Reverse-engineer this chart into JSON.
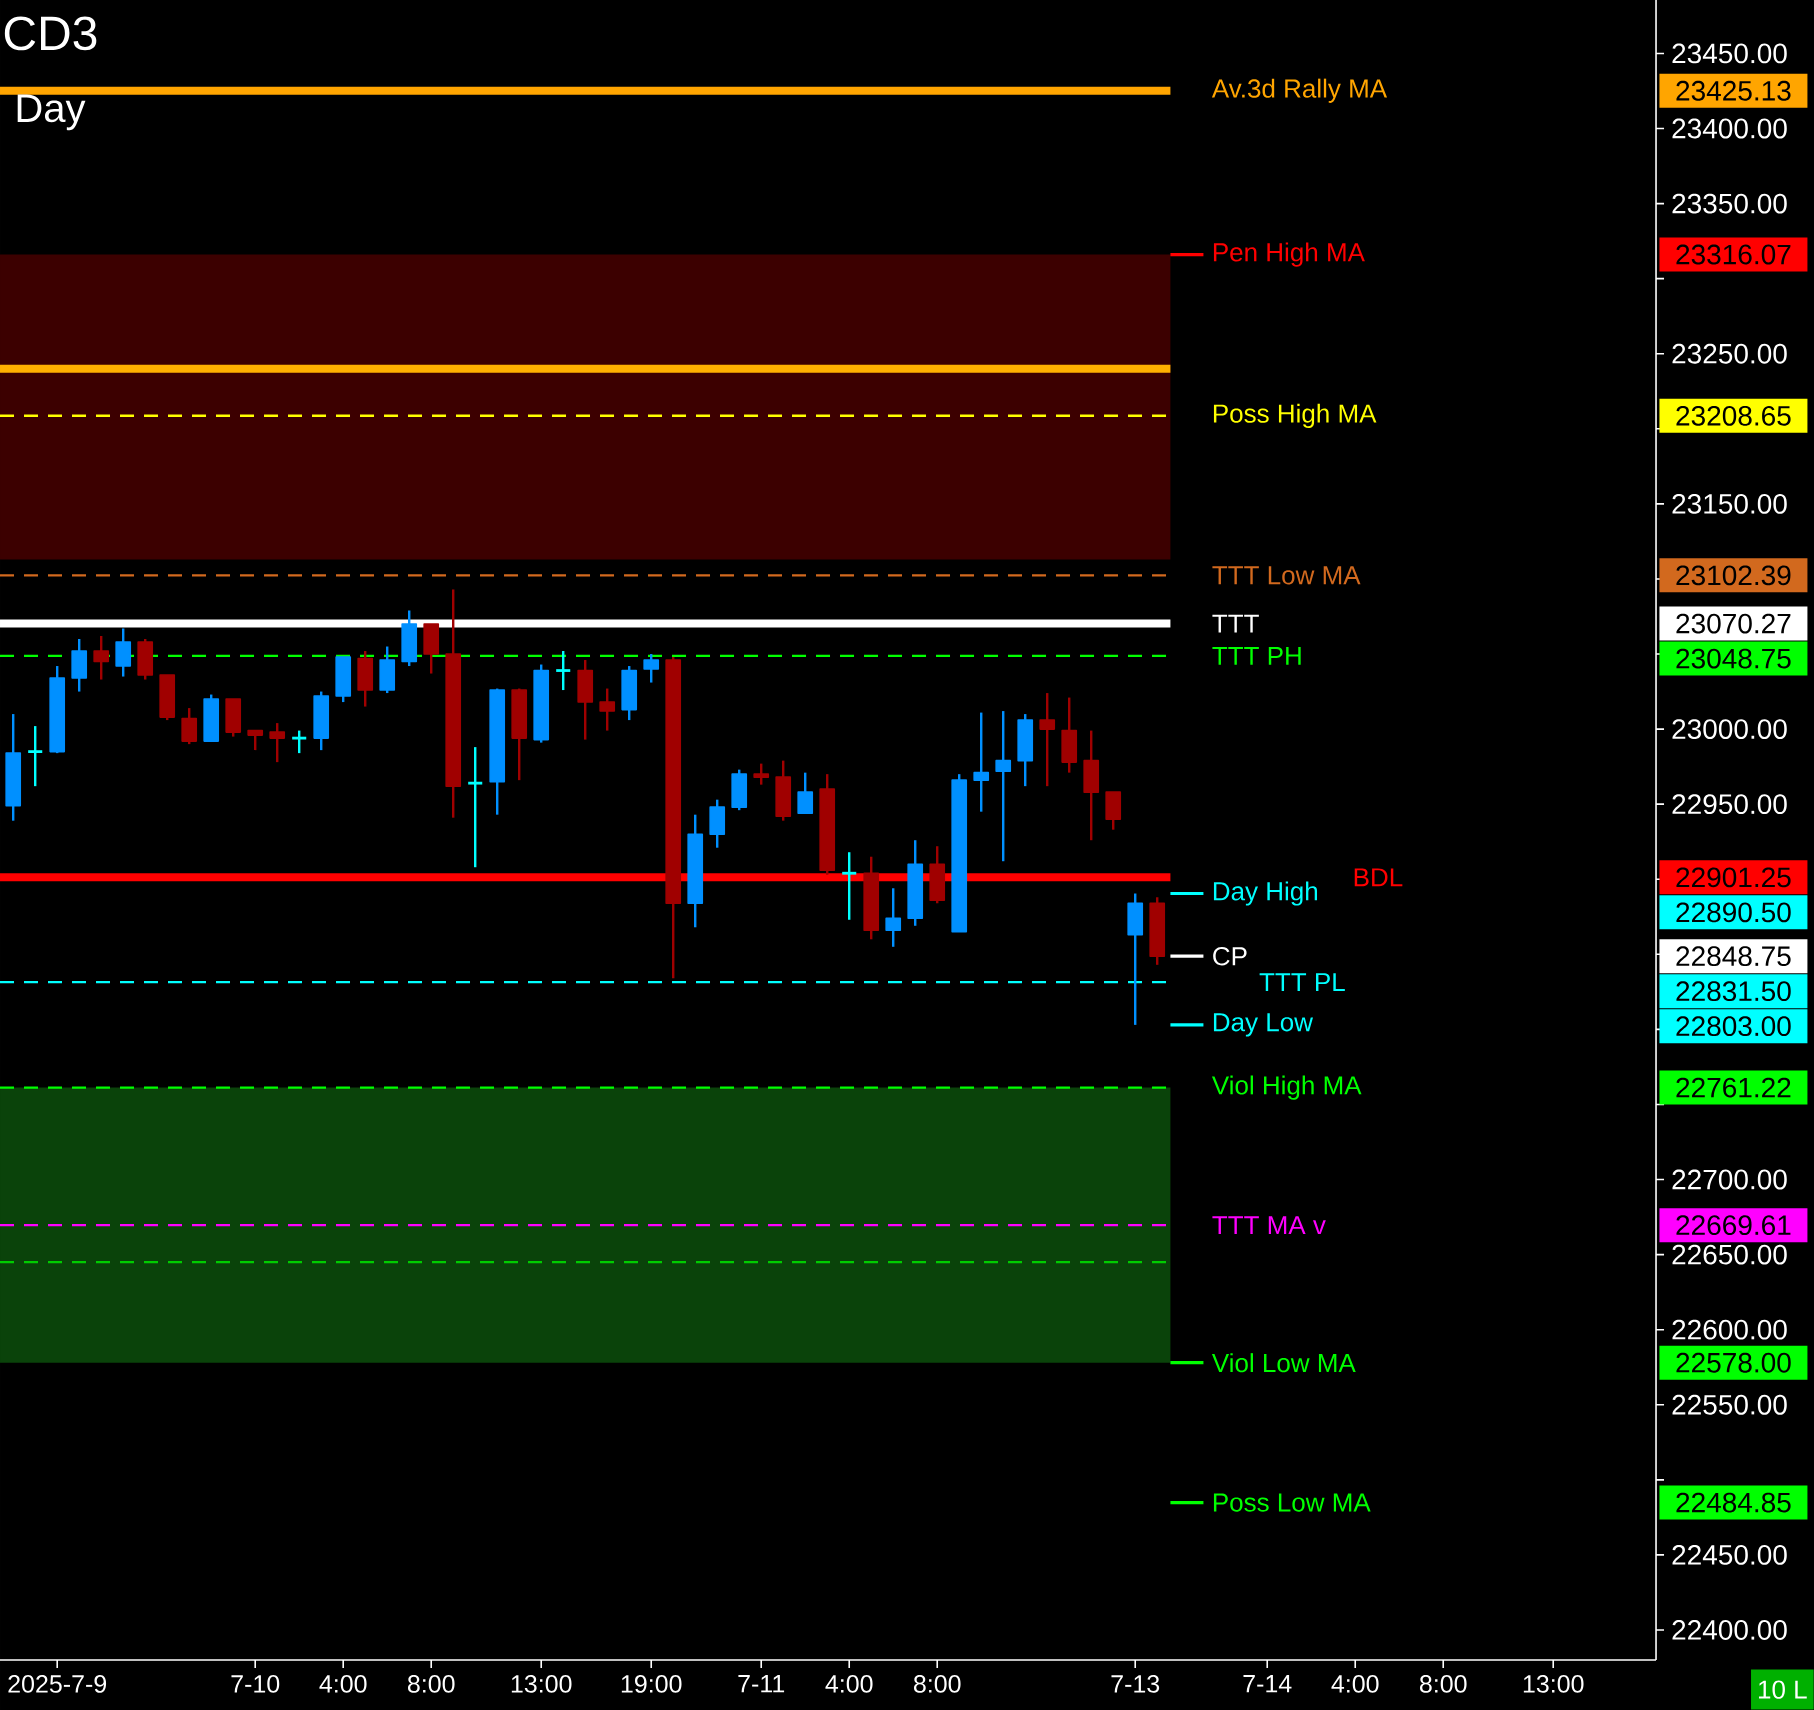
{
  "chart_data": {
    "type": "candlestick",
    "title": "CD3",
    "subtitle": "Day",
    "categories": [
      null,
      null,
      "2025-7-9",
      null,
      null,
      null,
      null,
      null,
      null,
      null,
      null,
      "7-10",
      null,
      null,
      null,
      "4:00",
      null,
      null,
      null,
      "8:00",
      null,
      null,
      null,
      null,
      "13:00",
      null,
      null,
      null,
      null,
      "19:00",
      null,
      null,
      null,
      null,
      "7-11",
      null,
      null,
      null,
      "4:00",
      null,
      null,
      null,
      "8:00",
      null,
      null,
      null,
      null,
      null,
      null,
      null,
      null,
      "7-13",
      null,
      null,
      null,
      null,
      null,
      "7-14",
      null,
      null,
      null,
      "4:00",
      null,
      null,
      null,
      "8:00",
      null,
      null,
      null,
      null,
      "13:00",
      null,
      null,
      null,
      null
    ],
    "ohlc": [
      [
        22949,
        23010,
        22939,
        22984
      ],
      [
        22985,
        23002,
        22962,
        22985
      ],
      [
        22985,
        23042,
        22984,
        23034
      ],
      [
        23034,
        23060,
        23025,
        23052
      ],
      [
        23052,
        23062,
        23033,
        23045
      ],
      [
        23042,
        23067,
        23035,
        23058
      ],
      [
        23058,
        23060,
        23033,
        23036
      ],
      [
        23036,
        23036,
        23006,
        23008
      ],
      [
        23007,
        23014,
        22990,
        22992
      ],
      [
        22992,
        23023,
        22992,
        23020
      ],
      [
        23020,
        23020,
        22995,
        22998
      ],
      [
        22999,
        22999,
        22986,
        22996
      ],
      [
        22998,
        23004,
        22978,
        22994
      ],
      [
        22994,
        22999,
        22984,
        22994
      ],
      [
        22994,
        23025,
        22986,
        23022
      ],
      [
        23022,
        23048,
        23018,
        23048
      ],
      [
        23047,
        23052,
        23015,
        23026
      ],
      [
        23026,
        23055,
        23024,
        23046
      ],
      [
        23045,
        23079,
        23042,
        23070
      ],
      [
        23070,
        23070,
        23037,
        23050
      ],
      [
        23050,
        23093,
        22941,
        22962
      ],
      [
        22964,
        22988,
        22908,
        22964
      ],
      [
        22965,
        23027,
        22943,
        23026
      ],
      [
        23026,
        23027,
        22966,
        22994
      ],
      [
        22993,
        23043,
        22991,
        23039
      ],
      [
        23039,
        23052,
        23026,
        23039
      ],
      [
        23039,
        23046,
        22993,
        23018
      ],
      [
        23018,
        23027,
        22999,
        23012
      ],
      [
        23013,
        23042,
        23006,
        23039
      ],
      [
        23040,
        23050,
        23031,
        23046
      ],
      [
        23046,
        23048,
        22834,
        22884
      ],
      [
        22884,
        22943,
        22868,
        22930
      ],
      [
        22930,
        22953,
        22921,
        22948
      ],
      [
        22948,
        22973,
        22946,
        22970
      ],
      [
        22970,
        22977,
        22963,
        22968
      ],
      [
        22968,
        22979,
        22939,
        22942
      ],
      [
        22944,
        22971,
        22944,
        22958
      ],
      [
        22960,
        22970,
        22903,
        22906
      ],
      [
        22904,
        22918,
        22873,
        22904
      ],
      [
        22904,
        22915,
        22860,
        22866
      ],
      [
        22866,
        22894,
        22855,
        22874
      ],
      [
        22874,
        22926,
        22869,
        22910
      ],
      [
        22910,
        22922,
        22884,
        22886
      ],
      [
        22865,
        22970,
        22865,
        22966
      ],
      [
        22966,
        23011,
        22945,
        22971
      ],
      [
        22972,
        23012,
        22912,
        22979
      ],
      [
        22979,
        23010,
        22962,
        23006
      ],
      [
        23006,
        23024,
        22962,
        23000
      ],
      [
        22999,
        23021,
        22971,
        22978
      ],
      [
        22979,
        22999,
        22926,
        22958
      ],
      [
        22958,
        22958,
        22933,
        22940
      ],
      [
        22863,
        22890.5,
        22803,
        22884
      ],
      [
        22884,
        22888,
        22843,
        22848.75
      ],
      null,
      null,
      null,
      null,
      null,
      null,
      null,
      null,
      null,
      null,
      null,
      null,
      null,
      null,
      null,
      null,
      null,
      null,
      null,
      null,
      null,
      null
    ],
    "colors": [
      "#0090ff",
      "#00ffff",
      "#0090ff",
      "#0090ff",
      "#a00000",
      "#0090ff",
      "#a00000",
      "#a00000",
      "#a00000",
      "#0090ff",
      "#a00000",
      "#a00000",
      "#a00000",
      "#00ffff",
      "#0090ff",
      "#0090ff",
      "#a00000",
      "#0090ff",
      "#0090ff",
      "#a00000",
      "#a00000",
      "#00ffff",
      "#0090ff",
      "#a00000",
      "#0090ff",
      "#00ffff",
      "#a00000",
      "#a00000",
      "#0090ff",
      "#0090ff",
      "#a00000",
      "#0090ff",
      "#0090ff",
      "#0090ff",
      "#a00000",
      "#a00000",
      "#0090ff",
      "#a00000",
      "#00ffff",
      "#a00000",
      "#0090ff",
      "#0090ff",
      "#a00000",
      "#0090ff",
      "#0090ff",
      "#0090ff",
      "#0090ff",
      "#a00000",
      "#a00000",
      "#a00000",
      "#a00000",
      "#0090ff",
      "#a00000",
      null,
      null,
      null,
      null,
      null,
      null,
      null,
      null,
      null,
      null,
      null,
      null,
      null,
      null,
      null,
      null,
      null,
      null,
      null,
      null,
      null,
      null
    ],
    "ylim": [
      22380,
      23485.6
    ],
    "yticks": [
      {
        "value": 22400,
        "label": "22400.00"
      },
      {
        "value": 22450,
        "label": "22450.00"
      },
      {
        "value": 22500,
        "label": null
      },
      {
        "value": 22550,
        "label": "22550.00"
      },
      {
        "value": 22600,
        "label": "22600.00"
      },
      {
        "value": 22650,
        "label": "22650.00"
      },
      {
        "value": 22700,
        "label": "22700.00"
      },
      {
        "value": 22750,
        "label": null
      },
      {
        "value": 22800,
        "label": null
      },
      {
        "value": 22850,
        "label": null
      },
      {
        "value": 22900,
        "label": null
      },
      {
        "value": 22950,
        "label": "22950.00"
      },
      {
        "value": 23000,
        "label": "23000.00"
      },
      {
        "value": 23050,
        "label": null
      },
      {
        "value": 23100,
        "label": null
      },
      {
        "value": 23150,
        "label": "23150.00"
      },
      {
        "value": 23200,
        "label": null
      },
      {
        "value": 23250,
        "label": "23250.00"
      },
      {
        "value": 23300,
        "label": null
      },
      {
        "value": 23350,
        "label": "23350.00"
      },
      {
        "value": 23400,
        "label": "23400.00"
      },
      {
        "value": 23450,
        "label": "23450.00"
      }
    ],
    "bands": [
      {
        "axis": "y",
        "from": 23113,
        "to": 23316.07,
        "color": "#3c0000"
      },
      {
        "axis": "y",
        "from": 22578,
        "to": 22761.22,
        "color": "#0a430a"
      }
    ],
    "ref_lines": [
      {
        "axis": "y",
        "value": 23425.13,
        "label": "Av.3d Rally MA",
        "color": "#ffa500",
        "line_style": "solid"
      },
      {
        "axis": "y",
        "value": 23316.07,
        "label": "Pen High MA",
        "color": "#ff0000"
      },
      {
        "axis": "y",
        "value": 23208.65,
        "label": "Poss High MA",
        "color": "#ffff00",
        "line_style": "dashed"
      },
      {
        "axis": "y",
        "value": 23102.39,
        "label": "TTT Low MA",
        "color": "#d2691e",
        "line_style": "dashed"
      },
      {
        "axis": "y",
        "value": 23070.27,
        "label": "TTT",
        "color": "#ffffff",
        "line_style": "solid"
      },
      {
        "axis": "y",
        "value": 23048.75,
        "label": "TTT PH",
        "color": "#00ff00",
        "line_style": "dashed"
      },
      {
        "axis": "y",
        "value": 22901.25,
        "label": "BDL",
        "color": "#ff0000",
        "line_style": "solid"
      },
      {
        "axis": "y",
        "value": 22890.5,
        "label": "Day High",
        "color": "#00ffff"
      },
      {
        "axis": "y",
        "value": 22848.75,
        "label": "CP",
        "color": "#ffffff"
      },
      {
        "axis": "y",
        "value": 22831.5,
        "label": "TTT PL",
        "color": "#00ffff",
        "line_style": "dashed"
      },
      {
        "axis": "y",
        "value": 22803,
        "label": "Day Low",
        "color": "#00ffff"
      },
      {
        "axis": "y",
        "value": 22761.22,
        "label": "Viol High MA",
        "color": "#00ff00",
        "line_style": "dashed"
      },
      {
        "axis": "y",
        "value": 22669.61,
        "label": "TTT MA v",
        "color": "#ff00ff",
        "line_style": "dashed"
      },
      {
        "axis": "y",
        "value": 22578,
        "label": "Viol Low MA",
        "color": "#00ff00"
      },
      {
        "axis": "y",
        "value": 22484.85,
        "label": "Poss Low MA",
        "color": "#00ff00"
      },
      {
        "axis": "y",
        "value": 23240,
        "color": "#ffb000",
        "line_style": "solid"
      },
      {
        "axis": "y",
        "value": 22645,
        "color": "#00cc00",
        "line_style": "dashed"
      }
    ],
    "annotations": [
      "23425.13",
      "23316.07",
      "23208.65",
      "23102.39",
      "23070.27",
      "23048.75",
      "22901.25",
      "22890.50",
      "22848.75",
      "22831.50",
      "22803.00",
      "22761.22",
      "22669.61",
      "22578.00",
      "22484.85",
      "10 L"
    ]
  }
}
